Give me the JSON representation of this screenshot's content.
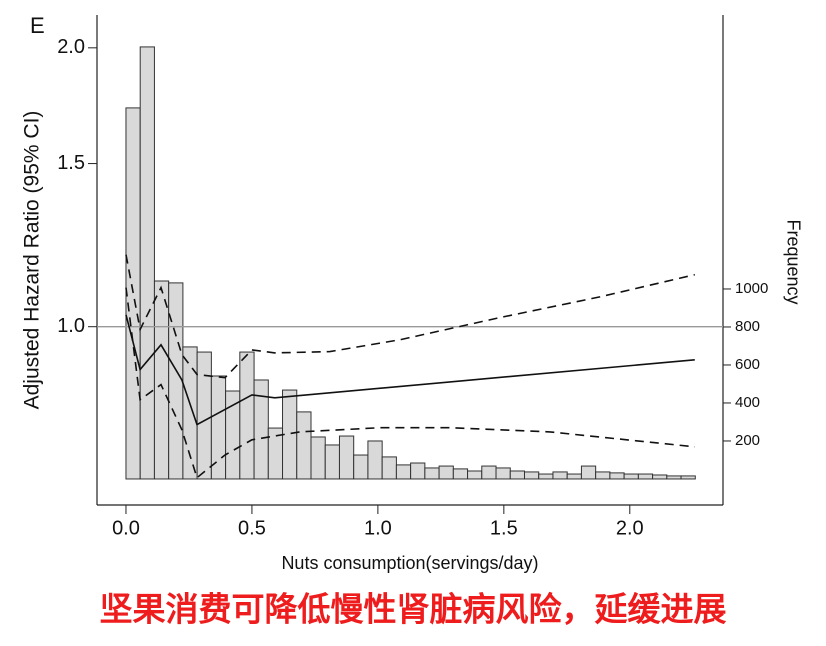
{
  "chart_data": {
    "type": "histogram",
    "panel_label": "E",
    "xlabel": "Nuts consumption(servings/day)",
    "ylabel": "Adjusted Hazard Ratio (95% CI)",
    "y2label": "Frequency",
    "xlim": [
      -0.115,
      2.37
    ],
    "ylim": [
      0.642,
      2.17
    ],
    "y2lim": [
      -137,
      2442
    ],
    "log_y": true,
    "xticks": [
      {
        "value": 0,
        "label": "0.0"
      },
      0.5,
      {
        "value": 1,
        "label": "1.0"
      },
      1.5,
      {
        "value": 2,
        "label": "2.0"
      }
    ],
    "yticks": [
      {
        "value": 1,
        "label": "1.0"
      },
      1.5,
      {
        "value": 2,
        "label": "2.0"
      }
    ],
    "y2ticks": [
      200,
      400,
      600,
      800,
      1000
    ],
    "reference_line": 1,
    "reference_color": "#999999",
    "bar_color": "#d9d9d9",
    "bins": [
      0,
      0.0565,
      0.113,
      0.1695,
      0.226,
      0.2825,
      0.339,
      0.3955,
      0.452,
      0.5085,
      0.565,
      0.6215,
      0.678,
      0.7345,
      0.791,
      0.8475,
      0.904,
      0.9605,
      1.017,
      1.0735,
      1.13,
      1.1865,
      1.243,
      1.2995,
      1.356,
      1.4125,
      1.469,
      1.5255,
      1.582,
      1.6385,
      1.695,
      1.7515,
      1.808,
      1.8645,
      1.921,
      1.9775,
      2.034,
      2.0905,
      2.147,
      2.2035,
      2.26
    ],
    "counts": [
      1953,
      2274,
      1042,
      1032,
      695,
      668,
      542,
      463,
      668,
      521,
      268,
      468,
      353,
      221,
      179,
      226,
      126,
      200,
      116,
      74,
      84,
      58,
      68,
      53,
      42,
      68,
      58,
      42,
      37,
      26,
      37,
      26,
      68,
      37,
      32,
      26,
      26,
      21,
      16,
      16
    ],
    "lines": [
      {
        "style": "solid",
        "color": "#111111",
        "x": [
          0,
          0.056,
          0.139,
          0.222,
          0.282,
          0.5,
          0.591,
          2.258
        ],
        "values": [
          1.03,
          0.899,
          0.956,
          0.876,
          0.784,
          0.844,
          0.838,
          0.921
        ]
      },
      {
        "style": "dashed",
        "color": "#111111",
        "x": [
          0,
          0.056,
          0.139,
          0.222,
          0.282,
          0.393,
          0.5,
          0.591,
          0.81,
          1.087,
          1.484,
          1.881,
          2.258
        ],
        "values": [
          1.196,
          0.993,
          1.102,
          0.933,
          0.888,
          0.881,
          0.944,
          0.937,
          0.94,
          0.968,
          1.023,
          1.077,
          1.138
        ]
      },
      {
        "style": "dashed",
        "color": "#111111",
        "x": [
          0,
          0.056,
          0.139,
          0.222,
          0.282,
          0.393,
          0.5,
          0.69,
          1.008,
          1.286,
          1.683,
          2.258
        ],
        "values": [
          1.102,
          0.834,
          0.866,
          0.774,
          0.687,
          0.727,
          0.755,
          0.77,
          0.778,
          0.778,
          0.77,
          0.742
        ]
      }
    ]
  },
  "caption": "坚果消费可降低慢性肾脏病风险，延缓进展"
}
